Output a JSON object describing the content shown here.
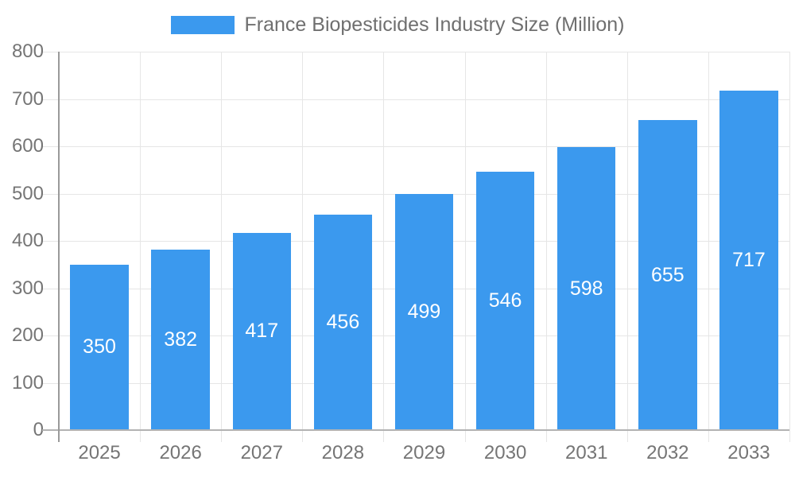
{
  "legend": {
    "label": "France Biopesticides Industry Size (Million)"
  },
  "chart_data": {
    "type": "bar",
    "title": "France Biopesticides Industry Size (Million)",
    "categories": [
      "2025",
      "2026",
      "2027",
      "2028",
      "2029",
      "2030",
      "2031",
      "2032",
      "2033"
    ],
    "values": [
      350,
      382,
      417,
      456,
      499,
      546,
      598,
      655,
      717
    ],
    "xlabel": "",
    "ylabel": "",
    "ylim": [
      0,
      800
    ],
    "y_ticks": [
      0,
      100,
      200,
      300,
      400,
      500,
      600,
      700,
      800
    ],
    "grid": true,
    "legend_position": "top",
    "colors": {
      "bar": "#3B99EE",
      "axis_text": "#757575",
      "legend_text": "#6F6F6F",
      "grid": "#E6E6E6",
      "x_axis_line": "#B3B3B3",
      "y_axis_line": "#9A9A9A",
      "value_label": "#FFFFFF"
    }
  }
}
